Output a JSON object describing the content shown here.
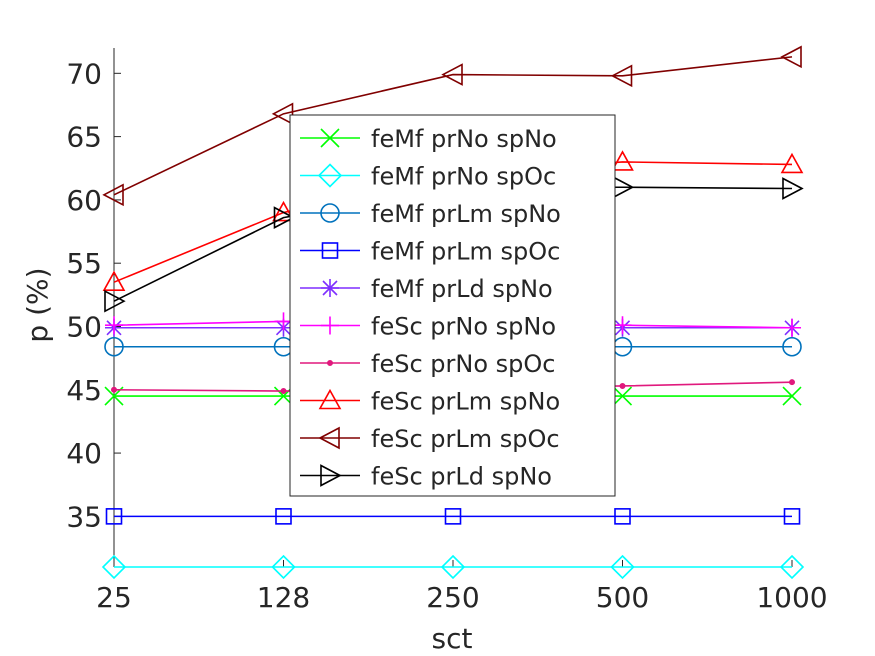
{
  "chart_data": {
    "type": "line",
    "xlabel": "sct",
    "ylabel": "p (%)",
    "categories": [
      "25",
      "128",
      "250",
      "500",
      "1000"
    ],
    "ylim": [
      31,
      72
    ],
    "yticks": [
      35,
      40,
      45,
      50,
      55,
      60,
      65,
      70
    ],
    "grid": false,
    "legend_position": "center",
    "series": [
      {
        "name": "feMf prNo spNo",
        "color": "#00ff00",
        "marker": "x",
        "values": [
          44.5,
          44.5,
          44.5,
          44.5,
          44.5
        ]
      },
      {
        "name": "feMf prNo spOc",
        "color": "#00ffff",
        "marker": "diamond",
        "values": [
          31,
          31,
          31,
          31,
          31
        ]
      },
      {
        "name": "feMf prLm spNo",
        "color": "#0072bd",
        "marker": "circle",
        "values": [
          48.4,
          48.4,
          48.4,
          48.4,
          48.4
        ]
      },
      {
        "name": "feMf prLm spOc",
        "color": "#0000ff",
        "marker": "square",
        "values": [
          35,
          35,
          35,
          35,
          35
        ]
      },
      {
        "name": "feMf prLd spNo",
        "color": "#7e2fff",
        "marker": "asterisk",
        "values": [
          49.9,
          49.9,
          49.9,
          49.9,
          49.9
        ]
      },
      {
        "name": "feSc prNo spNo",
        "color": "#ff00ff",
        "marker": "plus",
        "values": [
          50.1,
          50.4,
          50.2,
          50.1,
          49.9
        ]
      },
      {
        "name": "feSc prNo spOc",
        "color": "#e0197d",
        "marker": "dot",
        "values": [
          45,
          44.9,
          45.1,
          45.3,
          45.6
        ]
      },
      {
        "name": "feSc prLm spNo",
        "color": "#ff0000",
        "marker": "triangle-up",
        "values": [
          53.5,
          59,
          62,
          63,
          62.8
        ]
      },
      {
        "name": "feSc prLm spOc",
        "color": "#800000",
        "marker": "triangle-left",
        "values": [
          60.4,
          66.8,
          69.9,
          69.8,
          71.3
        ]
      },
      {
        "name": "feSc prLd spNo",
        "color": "#000000",
        "marker": "triangle-right",
        "values": [
          52,
          58.6,
          61,
          61,
          60.9
        ]
      }
    ]
  }
}
